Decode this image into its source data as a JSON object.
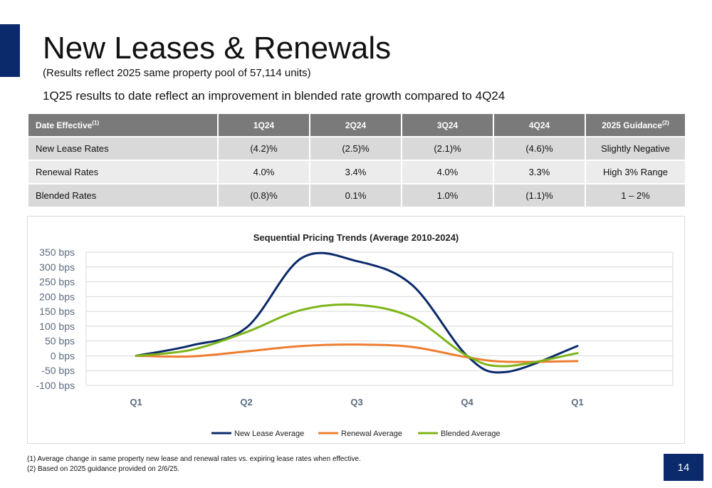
{
  "title": "New Leases & Renewals",
  "subtitle": "(Results reflect 2025 same property pool of 57,114 units)",
  "headline": "1Q25 results to date reflect an improvement in blended rate growth compared to 4Q24",
  "table": {
    "header_first": "Date Effective",
    "header_first_sup": "(1)",
    "headers": [
      "1Q24",
      "2Q24",
      "3Q24",
      "4Q24"
    ],
    "header_last": "2025 Guidance",
    "header_last_sup": "(2)",
    "rows": [
      {
        "label": "New Lease Rates",
        "values": [
          "(4.2)%",
          "(2.5)%",
          "(2.1)%",
          "(4.6)%"
        ],
        "guidance": "Slightly Negative"
      },
      {
        "label": "Renewal Rates",
        "values": [
          "4.0%",
          "3.4%",
          "4.0%",
          "3.3%"
        ],
        "guidance": "High 3% Range"
      },
      {
        "label": "Blended Rates",
        "values": [
          "(0.8)%",
          "0.1%",
          "1.0%",
          "(1.1)%"
        ],
        "guidance": "1 – 2%"
      }
    ]
  },
  "chart_data": {
    "type": "line",
    "title": "Sequential Pricing Trends (Average 2010-2024)",
    "categories": [
      "Q1",
      "Q2",
      "Q3",
      "Q4",
      "Q1"
    ],
    "y_ticks": [
      "350 bps",
      "300 bps",
      "250 bps",
      "200 bps",
      "150 bps",
      "100 bps",
      "50 bps",
      "0 bps",
      "-50 bps",
      "-100 bps"
    ],
    "ylim": [
      -100,
      350
    ],
    "grid": true,
    "legend_position": "bottom",
    "series": [
      {
        "name": "New Lease Average",
        "color": "#0b2a6b",
        "x": [
          0,
          0.5,
          1,
          1.5,
          2,
          2.5,
          3,
          3.35,
          4
        ],
        "values": [
          0,
          35,
          95,
          330,
          320,
          240,
          0,
          -55,
          33
        ]
      },
      {
        "name": "Renewal Average",
        "color": "#ed7d31",
        "x": [
          0,
          0.5,
          1,
          1.5,
          2,
          2.5,
          3,
          3.35,
          4
        ],
        "values": [
          0,
          -2,
          15,
          33,
          38,
          30,
          -5,
          -20,
          -18
        ]
      },
      {
        "name": "Blended Average",
        "color": "#7cb518",
        "x": [
          0,
          0.5,
          1,
          1.5,
          2,
          2.5,
          3,
          3.35,
          4
        ],
        "values": [
          0,
          20,
          80,
          155,
          172,
          130,
          0,
          -35,
          9
        ]
      }
    ]
  },
  "footnotes": [
    "(1) Average change in same property new lease and renewal rates vs. expiring lease rates when effective.",
    "(2) Based on 2025 guidance provided on 2/6/25."
  ],
  "page_number": "14",
  "colors": {
    "brand_navy": "#0b2a6b",
    "table_header": "#7a7a7a"
  }
}
